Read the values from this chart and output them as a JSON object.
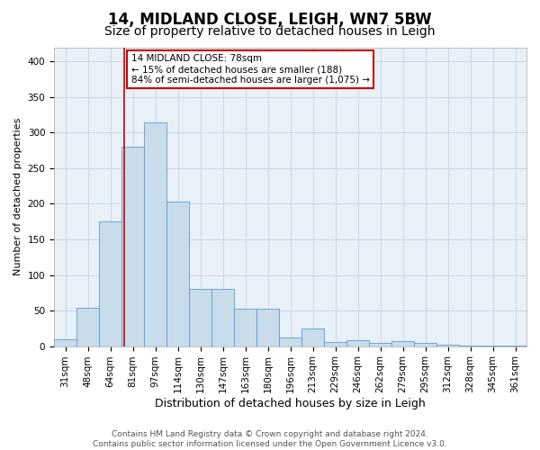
{
  "title1": "14, MIDLAND CLOSE, LEIGH, WN7 5BW",
  "title2": "Size of property relative to detached houses in Leigh",
  "xlabel": "Distribution of detached houses by size in Leigh",
  "ylabel": "Number of detached properties",
  "categories": [
    "31sqm",
    "48sqm",
    "64sqm",
    "81sqm",
    "97sqm",
    "114sqm",
    "130sqm",
    "147sqm",
    "163sqm",
    "180sqm",
    "196sqm",
    "213sqm",
    "229sqm",
    "246sqm",
    "262sqm",
    "279sqm",
    "295sqm",
    "312sqm",
    "328sqm",
    "345sqm",
    "361sqm"
  ],
  "bar_values": [
    9,
    54,
    175,
    280,
    315,
    203,
    80,
    80,
    52,
    52,
    12,
    25,
    6,
    8,
    4,
    7,
    4,
    2,
    1,
    1,
    1
  ],
  "bar_color": "#c9dcea",
  "bar_edge_color": "#5b9bd5",
  "grid_color": "#c8d8e8",
  "background_color": "#e8f0f8",
  "vline_color": "#cc0000",
  "annotation_text": "14 MIDLAND CLOSE: 78sqm\n← 15% of detached houses are smaller (188)\n84% of semi-detached houses are larger (1,075) →",
  "annotation_box_color": "#ffffff",
  "annotation_box_edge": "#cc0000",
  "ylim": [
    0,
    420
  ],
  "yticks": [
    0,
    50,
    100,
    150,
    200,
    250,
    300,
    350,
    400
  ],
  "footer_text": "Contains HM Land Registry data © Crown copyright and database right 2024.\nContains public sector information licensed under the Open Government Licence v3.0.",
  "title1_fontsize": 12,
  "title2_fontsize": 10,
  "xlabel_fontsize": 9,
  "ylabel_fontsize": 8,
  "tick_fontsize": 7.5,
  "footer_fontsize": 6.5,
  "vline_pos": 2.62
}
